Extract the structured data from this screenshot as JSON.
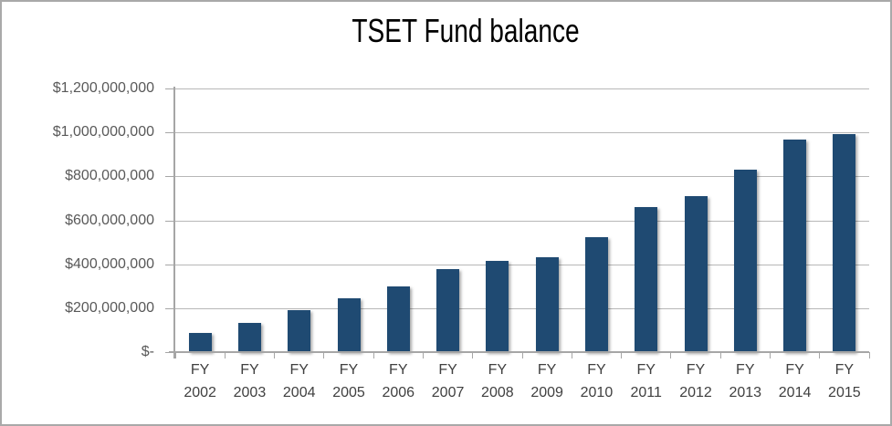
{
  "frame": {
    "border_color": "#a9a9a9",
    "background_color": "#ffffff"
  },
  "title": {
    "text": "TSET Fund balance",
    "color": "#000000"
  },
  "chart_data": {
    "type": "bar",
    "title": "TSET Fund balance",
    "categories": [
      "FY 2002",
      "FY 2003",
      "FY 2004",
      "FY 2005",
      "FY 2006",
      "FY 2007",
      "FY 2008",
      "FY 2009",
      "FY 2010",
      "FY 2011",
      "FY 2012",
      "FY 2013",
      "FY 2014",
      "FY 2015"
    ],
    "values": [
      89000000,
      134000000,
      191000000,
      244000000,
      297000000,
      376000000,
      415000000,
      430000000,
      523000000,
      662000000,
      709000000,
      830000000,
      966000000,
      994000000
    ],
    "xlabel": "",
    "ylabel": "",
    "ylim": [
      0,
      1200000000
    ],
    "ytick_interval": 200000000,
    "ytick_labels_top_to_bottom": [
      "$1,200,000,000",
      "$1,000,000,000",
      "$800,000,000",
      "$600,000,000",
      "$400,000,000",
      "$200,000,000",
      "$-"
    ],
    "grid": true,
    "legend": false,
    "bar_color": "#1f4a72",
    "gridline_color": "#b7b7b7",
    "axis_color": "#a6a6a6",
    "tick_label_color": "#595959",
    "x_tick_label_color": "#404040"
  }
}
